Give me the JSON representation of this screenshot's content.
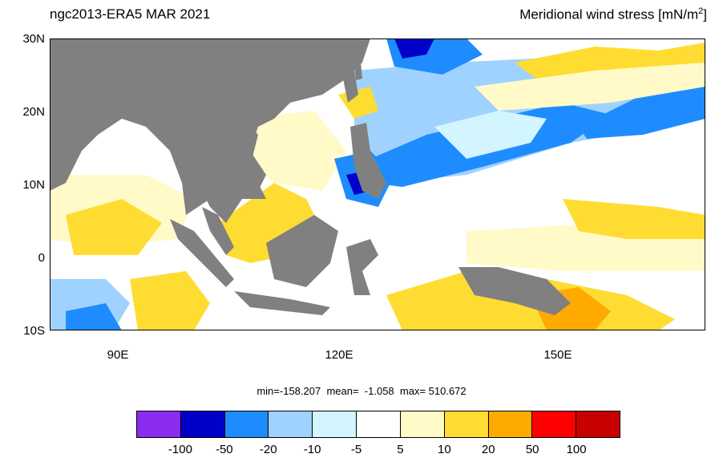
{
  "header": {
    "left_title": "ngc2013-ERA5  MAR 2021",
    "right_title_prefix": "Meridional wind stress [mN/m",
    "right_title_sup": "2",
    "right_title_suffix": "]"
  },
  "axes": {
    "lat_labels": [
      "30N",
      "20N",
      "10N",
      "0",
      "10S"
    ],
    "lon_labels": [
      "90E",
      "120E",
      "150E"
    ],
    "lon_range": [
      80,
      170
    ],
    "lat_range": [
      -10,
      30
    ]
  },
  "stats": {
    "min_text": "min=-158.207",
    "mean_text": "mean=  -1.058",
    "max_text": "max= 510.672"
  },
  "colorbar": {
    "colors": [
      "#8b2cee",
      "#0000c8",
      "#1e8cff",
      "#a0d2ff",
      "#d2f5ff",
      "#ffffff",
      "#fffac8",
      "#ffdc32",
      "#ffaa00",
      "#ff0000",
      "#c80000"
    ],
    "labels": [
      "-100",
      "-50",
      "-20",
      "-10",
      "-5",
      "5",
      "10",
      "20",
      "50",
      "100"
    ]
  },
  "colors": {
    "land": "#808080",
    "ocean_default": "#ffffff"
  }
}
